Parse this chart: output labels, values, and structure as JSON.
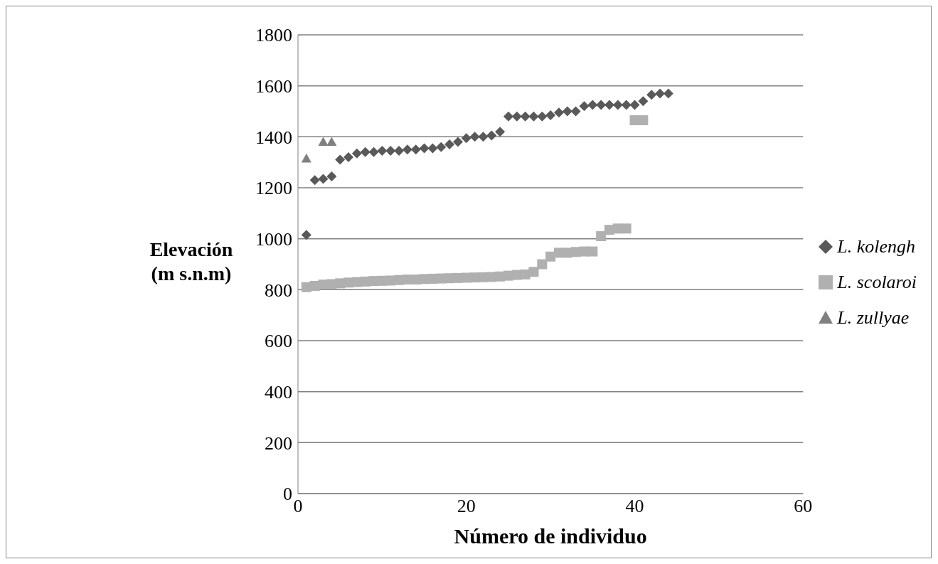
{
  "chart_data": {
    "type": "scatter",
    "xlabel": "Número de individuo",
    "ylabel": "Elevación (m s.n.m)",
    "xlim": [
      0,
      60
    ],
    "xticks": [
      0,
      20,
      40,
      60
    ],
    "ylim": [
      0,
      1800
    ],
    "yticks": [
      0,
      200,
      400,
      600,
      800,
      1000,
      1200,
      1400,
      1600,
      1800
    ],
    "grid": "y",
    "legend": "right",
    "series": [
      {
        "name": "L. kolengh",
        "color": "#595959",
        "marker": "diamond",
        "x": [
          1,
          2,
          3,
          4,
          5,
          6,
          7,
          8,
          9,
          10,
          11,
          12,
          13,
          14,
          15,
          16,
          17,
          18,
          19,
          20,
          21,
          22,
          23,
          24,
          25,
          26,
          27,
          28,
          29,
          30,
          31,
          32,
          33,
          34,
          35,
          36,
          37,
          38,
          39,
          40,
          41,
          42,
          43,
          44
        ],
        "values": [
          1015,
          1230,
          1235,
          1245,
          1310,
          1320,
          1335,
          1340,
          1340,
          1345,
          1345,
          1345,
          1350,
          1350,
          1355,
          1355,
          1360,
          1370,
          1380,
          1395,
          1400,
          1400,
          1405,
          1420,
          1480,
          1480,
          1480,
          1480,
          1480,
          1485,
          1495,
          1500,
          1500,
          1520,
          1525,
          1525,
          1525,
          1525,
          1525,
          1525,
          1540,
          1565,
          1570,
          1570
        ]
      },
      {
        "name": "L. scolaroi",
        "color": "#b0b0b0",
        "marker": "square",
        "x": [
          1,
          2,
          3,
          4,
          5,
          6,
          7,
          8,
          9,
          10,
          11,
          12,
          13,
          14,
          15,
          16,
          17,
          18,
          19,
          20,
          21,
          22,
          23,
          24,
          25,
          26,
          27,
          28,
          29,
          30,
          31,
          32,
          33,
          34,
          35,
          36,
          37,
          38,
          39,
          40,
          41
        ],
        "values": [
          810,
          815,
          820,
          822,
          825,
          828,
          830,
          832,
          834,
          835,
          836,
          838,
          840,
          840,
          842,
          843,
          844,
          845,
          846,
          847,
          848,
          849,
          850,
          852,
          855,
          858,
          860,
          870,
          900,
          930,
          945,
          945,
          948,
          950,
          950,
          1010,
          1035,
          1040,
          1040,
          1465,
          1465
        ]
      },
      {
        "name": "L. zullyae",
        "color": "#808080",
        "marker": "triangle",
        "x": [
          1,
          3,
          4
        ],
        "values": [
          1315,
          1380,
          1380
        ]
      }
    ]
  }
}
